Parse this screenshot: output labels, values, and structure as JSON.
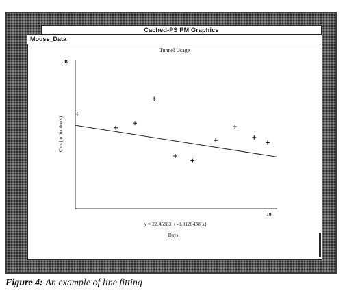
{
  "window": {
    "title": "Cached-PS PM Graphics",
    "menu": [
      "Mouse_Data"
    ]
  },
  "chart_data": {
    "type": "scatter",
    "title": "Tunnel Usage",
    "xlabel": "Days",
    "ylabel": "Cars (in hundreds)",
    "x_tick_labels": [
      "10"
    ],
    "y_tick_labels": [
      "40"
    ],
    "xlim": [
      0,
      10.5
    ],
    "ylim": [
      0,
      40
    ],
    "points": [
      {
        "x": 0.1,
        "y": 25.5
      },
      {
        "x": 2.1,
        "y": 21.8
      },
      {
        "x": 3.1,
        "y": 23.0
      },
      {
        "x": 4.1,
        "y": 29.6
      },
      {
        "x": 5.2,
        "y": 14.2
      },
      {
        "x": 6.1,
        "y": 13.0
      },
      {
        "x": 7.3,
        "y": 18.4
      },
      {
        "x": 8.3,
        "y": 22.1
      },
      {
        "x": 9.3,
        "y": 19.2
      },
      {
        "x": 10.0,
        "y": 17.8
      }
    ],
    "fit": {
      "equation": "y = 22.45883 + -0.8120438[x]",
      "intercept": 22.45883,
      "slope": -0.8120438
    }
  },
  "caption": {
    "label": "Figure 4:",
    "text": "An example of line fitting"
  }
}
